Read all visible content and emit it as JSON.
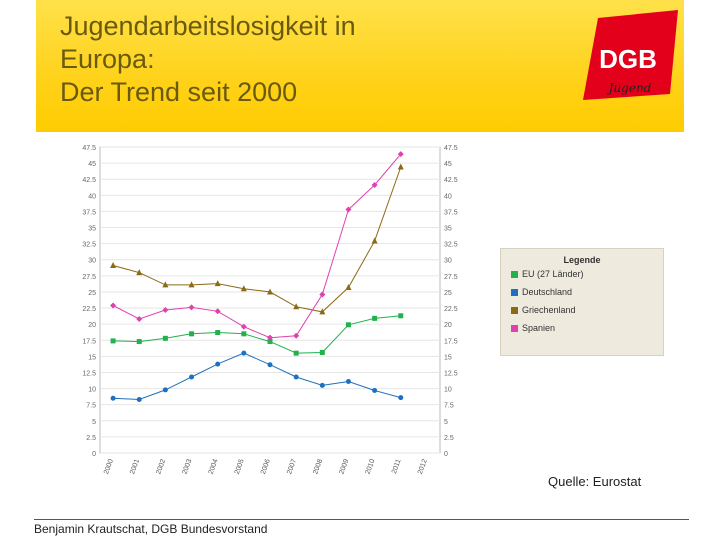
{
  "slide": {
    "title_lines": [
      "Jugendarbeitslosigkeit in",
      "Europa:",
      "Der Trend seit 2000"
    ],
    "logo_text": "DGB",
    "logo_subtext": "Jugend",
    "source": "Quelle: Eurostat",
    "footer": "Benjamin Krautschat, DGB Bundesvorstand"
  },
  "chart_data": {
    "type": "line",
    "title": "",
    "xlabel": "",
    "ylabel": "",
    "ylim": [
      0,
      47.5
    ],
    "yticks": [
      "0",
      "2.5",
      "5",
      "7.5",
      "10",
      "12.5",
      "15",
      "17.5",
      "20",
      "22.5",
      "25",
      "27.5",
      "30",
      "32.5",
      "35",
      "37.5",
      "40",
      "42.5",
      "45",
      "47.5"
    ],
    "categories": [
      "2000",
      "2001",
      "2002",
      "2003",
      "2004",
      "2005",
      "2006",
      "2007",
      "2008",
      "2009",
      "2010",
      "2011",
      "2012"
    ],
    "legend_title": "Legende",
    "series": [
      {
        "name": "EU (27 Länder)",
        "color": "#22b14c",
        "marker": "square",
        "values": [
          17.4,
          17.3,
          17.8,
          18.5,
          18.7,
          18.5,
          17.3,
          15.5,
          15.6,
          19.9,
          20.9,
          21.3,
          null
        ]
      },
      {
        "name": "Deutschland",
        "color": "#1f6fbf",
        "marker": "circle",
        "values": [
          8.5,
          8.3,
          9.8,
          11.8,
          13.8,
          15.5,
          13.7,
          11.8,
          10.5,
          11.1,
          9.7,
          8.6,
          null
        ]
      },
      {
        "name": "Griechenland",
        "color": "#8b6a14",
        "marker": "triangle",
        "values": [
          29.1,
          28.0,
          26.1,
          26.1,
          26.3,
          25.5,
          25.0,
          22.7,
          21.9,
          25.7,
          32.9,
          44.4,
          null
        ]
      },
      {
        "name": "Spanien",
        "color": "#e040b0",
        "marker": "diamond",
        "values": [
          22.9,
          20.8,
          22.2,
          22.6,
          22.0,
          19.6,
          17.9,
          18.2,
          24.6,
          37.8,
          41.6,
          46.4,
          null
        ]
      }
    ]
  }
}
